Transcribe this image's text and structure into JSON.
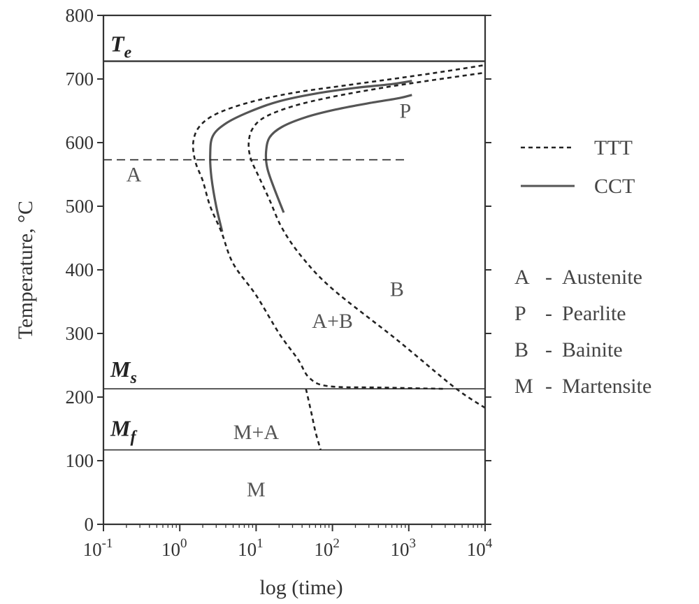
{
  "chart_data": {
    "type": "line",
    "xlabel": "log (time)",
    "ylabel": "Temperature, °C",
    "x_scale": "log",
    "xlim": [
      0.1,
      10000
    ],
    "ylim": [
      0,
      800
    ],
    "x_ticks": [
      {
        "base": "10",
        "exp": "-1"
      },
      {
        "base": "10",
        "exp": "0"
      },
      {
        "base": "10",
        "exp": "1"
      },
      {
        "base": "10",
        "exp": "2"
      },
      {
        "base": "10",
        "exp": "3"
      },
      {
        "base": "10",
        "exp": "4"
      }
    ],
    "x_tick_values": [
      0.1,
      1,
      10,
      100,
      1000,
      10000
    ],
    "y_ticks": [
      "0",
      "100",
      "200",
      "300",
      "400",
      "500",
      "600",
      "700",
      "800"
    ],
    "y_tick_values": [
      0,
      100,
      200,
      300,
      400,
      500,
      600,
      700,
      800
    ],
    "grid": false,
    "legend": {
      "placement": "right",
      "entries": [
        {
          "label": "TTT",
          "style": "dashed"
        },
        {
          "label": "CCT",
          "style": "solid"
        }
      ]
    },
    "phase_key": [
      {
        "letter": "A",
        "sep": "-",
        "name": "Austenite"
      },
      {
        "letter": "P",
        "sep": "-",
        "name": "Pearlite"
      },
      {
        "letter": "B",
        "sep": "-",
        "name": "Bainite"
      },
      {
        "letter": "M",
        "sep": "-",
        "name": "Martensite"
      }
    ],
    "reference_lines": [
      {
        "symbol": "T",
        "subscript": "e",
        "y": 728,
        "x_from": 0.1
      },
      {
        "symbol": "M",
        "subscript": "s",
        "y": 213,
        "x_from": 0.1
      },
      {
        "symbol": "M",
        "subscript": "f",
        "y": 117,
        "x_from": 0.1
      }
    ],
    "region_labels": [
      {
        "text": "A",
        "x": 0.25,
        "y": 550
      },
      {
        "text": "P",
        "x": 900,
        "y": 650
      },
      {
        "text": "B",
        "x": 700,
        "y": 370
      },
      {
        "text": "A+B",
        "x": 100,
        "y": 320
      },
      {
        "text": "M+A",
        "x": 10,
        "y": 145
      },
      {
        "text": "M",
        "x": 10,
        "y": 55
      }
    ],
    "series": [
      {
        "style": "dashed",
        "x": [
          45,
          53,
          60,
          70
        ],
        "y": [
          213,
          175,
          145,
          117
        ]
      },
      {
        "style": "solid",
        "x": [
          3.6,
          3.0,
          2.6,
          2.5,
          2.7,
          4,
          8,
          20,
          60,
          200,
          600,
          1100
        ],
        "y": [
          460,
          500,
          545,
          580,
          610,
          630,
          648,
          665,
          677,
          686,
          692,
          697
        ]
      },
      {
        "style": "solid",
        "x": [
          23,
          17,
          14,
          13.5,
          15,
          22,
          45,
          110,
          300,
          750,
          1100
        ],
        "y": [
          490,
          530,
          560,
          585,
          608,
          625,
          640,
          652,
          662,
          670,
          675
        ]
      },
      {
        "style": "dashed",
        "x": [
          2800,
          450,
          90,
          50,
          35,
          20,
          10,
          5,
          3.5,
          2.5,
          2.0,
          1.6,
          1.5,
          1.8,
          3,
          8,
          30,
          150,
          800,
          3000,
          10000
        ],
        "y": [
          213,
          215,
          217,
          230,
          260,
          300,
          360,
          410,
          460,
          500,
          540,
          570,
          600,
          625,
          645,
          663,
          678,
          690,
          702,
          712,
          722
        ]
      },
      {
        "style": "dashed",
        "x": [
          10000,
          4000,
          700,
          100,
          40,
          22,
          15,
          11,
          8.5,
          8,
          9,
          13,
          30,
          100,
          500,
          2000,
          10000
        ],
        "y": [
          183,
          215,
          290,
          370,
          420,
          465,
          510,
          545,
          575,
          600,
          622,
          640,
          657,
          672,
          687,
          698,
          710
        ]
      },
      {
        "style": "dashed",
        "x": [
          0.1,
          900
        ],
        "y": [
          573,
          573
        ]
      }
    ]
  }
}
